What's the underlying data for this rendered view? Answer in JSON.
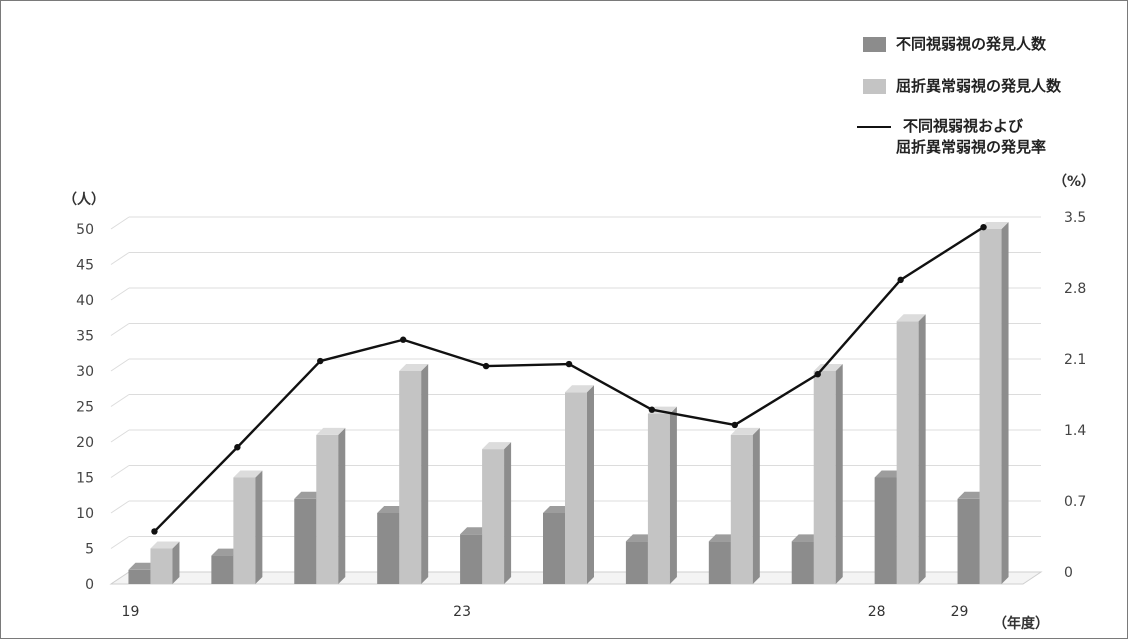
{
  "chart_data": {
    "type": "bar",
    "categories": [
      "19",
      "",
      "",
      "",
      "23",
      "",
      "",
      "",
      "",
      "28",
      "29"
    ],
    "series": [
      {
        "name": "不同視弱視の発見人数",
        "kind": "bar",
        "axis": "left",
        "color": "#8c8c8c",
        "values": [
          2,
          4,
          12,
          10,
          7,
          10,
          6,
          6,
          6,
          15,
          12
        ]
      },
      {
        "name": "屈折異常弱視の発見人数",
        "kind": "bar",
        "axis": "left",
        "color": "#c4c4c4",
        "values": [
          5,
          15,
          21,
          30,
          19,
          27,
          24,
          21,
          30,
          37,
          50
        ]
      },
      {
        "name": "不同視弱視および\n屈折異常弱視の発見率",
        "kind": "line",
        "axis": "right",
        "color": "#111111",
        "values": [
          0.4,
          1.23,
          2.08,
          2.29,
          2.03,
          2.05,
          1.6,
          1.45,
          1.95,
          2.88,
          3.4
        ]
      }
    ],
    "ylabel_left": "（人）",
    "ylabel_right": "（%）",
    "xlabel": "（年度）",
    "ylim_left": [
      0,
      50
    ],
    "ylim_right": [
      0,
      3.5
    ],
    "yticks_left": [
      "0",
      "5",
      "10",
      "15",
      "20",
      "25",
      "30",
      "35",
      "40",
      "45",
      "50"
    ],
    "yticks_right": [
      "0",
      "0.7",
      "1.4",
      "2.1",
      "2.8",
      "3.5"
    ],
    "grid": true,
    "legend_position": "top-right"
  },
  "legend": {
    "item1": "不同視弱視の発見人数",
    "item2": "屈折異常弱視の発見人数",
    "item3_line1": "不同視弱視および",
    "item3_line2": "屈折異常弱視の発見率"
  }
}
